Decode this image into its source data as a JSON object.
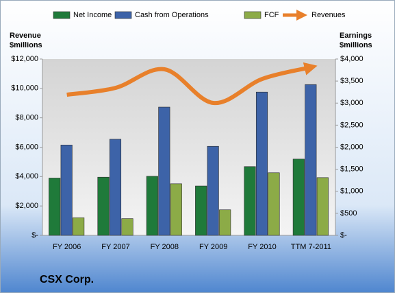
{
  "chart_data": {
    "type": "bar_line",
    "title": "CSX Corp.",
    "y_label": [
      "Revenue",
      "$millions"
    ],
    "y2_label": [
      "Earnings",
      "$millions"
    ],
    "categories": [
      "FY 2006",
      "FY 2007",
      "FY 2008",
      "FY 2009",
      "FY 2010",
      "TTM 7-2011"
    ],
    "series": [
      {
        "name": "Net Income",
        "color": "#1f7a3a",
        "axis": "y2",
        "kind": "bar",
        "values": [
          1300,
          1320,
          1340,
          1120,
          1560,
          1730
        ]
      },
      {
        "name": "Cash from Operations",
        "color": "#3d63a8",
        "axis": "y2",
        "kind": "bar",
        "values": [
          2050,
          2180,
          2910,
          2020,
          3250,
          3420
        ]
      },
      {
        "name": "FCF",
        "color": "#8cab47",
        "axis": "y2",
        "kind": "bar",
        "values": [
          400,
          380,
          1170,
          580,
          1420,
          1310
        ]
      },
      {
        "name": "Revenues",
        "color": "#e8802b",
        "axis": "y",
        "kind": "line",
        "values": [
          9570,
          10040,
          11300,
          9010,
          10645,
          11440
        ]
      }
    ],
    "ylim": [
      0,
      12000
    ],
    "yticks": [
      {
        "value": 0,
        "label": "$-"
      },
      {
        "value": 2000,
        "label": "$2,000"
      },
      {
        "value": 4000,
        "label": "$4,000"
      },
      {
        "value": 6000,
        "label": "$6,000"
      },
      {
        "value": 8000,
        "label": "$8,000"
      },
      {
        "value": 10000,
        "label": "$10,000"
      },
      {
        "value": 12000,
        "label": "$12,000"
      }
    ],
    "y2lim": [
      0,
      4000
    ],
    "y2ticks": [
      {
        "value": 0,
        "label": "$-"
      },
      {
        "value": 500,
        "label": "$500"
      },
      {
        "value": 1000,
        "label": "$1,000"
      },
      {
        "value": 1500,
        "label": "$1,500"
      },
      {
        "value": 2000,
        "label": "$2,000"
      },
      {
        "value": 2500,
        "label": "$2,500"
      },
      {
        "value": 3000,
        "label": "$3,000"
      },
      {
        "value": 3500,
        "label": "$3,500"
      },
      {
        "value": 4000,
        "label": "$4,000"
      }
    ],
    "grid": false
  }
}
